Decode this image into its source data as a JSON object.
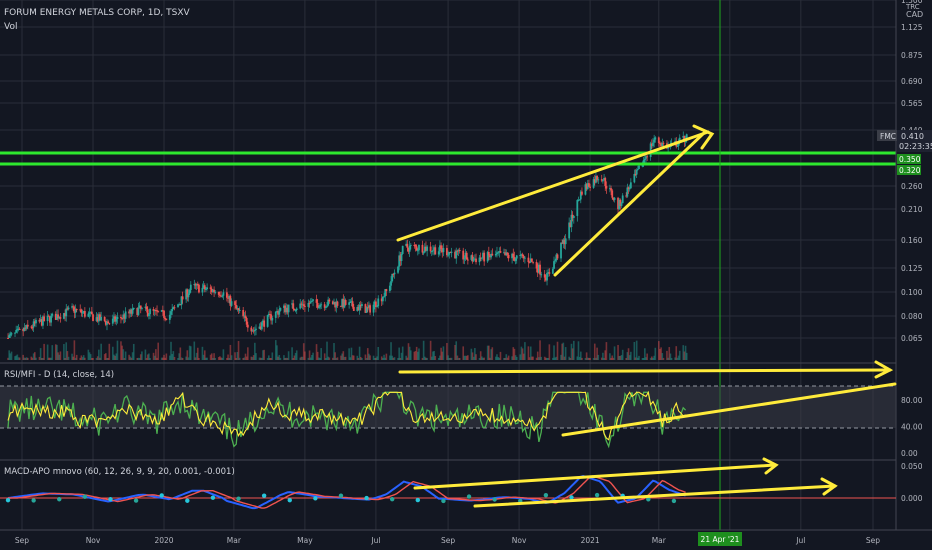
{
  "symbol": {
    "title": "FORUM ENERGY METALS CORP, 1D, TSXV",
    "volume_label": "Vol",
    "currency_top": "TRC",
    "currency": "CAD",
    "ticker_tag": "FMC",
    "last_price": "0.410",
    "countdown": "02:23:35",
    "level_upper_tag": "0.350",
    "level_lower_tag": "0.320"
  },
  "colors": {
    "background": "#131722",
    "up": "#26a69a",
    "down": "#ef5350",
    "support_lines": "#2ee82e",
    "annotations": "#ffeb3b",
    "cursor_line": "#1fa81f",
    "rsi_line": "#ffeb3b",
    "mfi_line": "#4caf50",
    "macd_line": "#2962ff",
    "signal_line": "#ef5350"
  },
  "rsi_panel": {
    "title": "RSI/MFI - D (14, close, 14)",
    "ticks": [
      "80.00",
      "40.00",
      "0.00"
    ]
  },
  "macd_panel": {
    "title": "MACD-APO mnovo (60, 12, 26, 9, 9, 20, 0.001, -0.001)",
    "ticks": [
      "0.050",
      "0.000"
    ]
  },
  "x_axis": {
    "labels": [
      "Sep",
      "Nov",
      "2020",
      "Mar",
      "May",
      "Jul",
      "Sep",
      "Nov",
      "2021",
      "Mar",
      "May",
      "Jul",
      "Sep"
    ],
    "cursor_date": "21 Apr '21"
  },
  "chart_data": {
    "type": "candlestick",
    "title": "FORUM ENERGY METALS CORP, 1D, TSXV",
    "y_scale": "log",
    "price_ticks": [
      "1.500",
      "1.125",
      "0.875",
      "0.690",
      "0.565",
      "0.440",
      "0.350",
      "0.320",
      "0.260",
      "0.210",
      "0.160",
      "0.125",
      "0.100",
      "0.080",
      "0.065"
    ],
    "price_path": [
      {
        "x": "2019-08-20",
        "y": 0.065
      },
      {
        "x": "2019-09-15",
        "y": 0.075
      },
      {
        "x": "2019-10-15",
        "y": 0.085
      },
      {
        "x": "2019-11-15",
        "y": 0.075
      },
      {
        "x": "2019-12-10",
        "y": 0.085
      },
      {
        "x": "2020-01-05",
        "y": 0.08
      },
      {
        "x": "2020-01-25",
        "y": 0.105
      },
      {
        "x": "2020-02-20",
        "y": 0.1
      },
      {
        "x": "2020-03-18",
        "y": 0.07
      },
      {
        "x": "2020-04-10",
        "y": 0.085
      },
      {
        "x": "2020-05-05",
        "y": 0.09
      },
      {
        "x": "2020-06-01",
        "y": 0.09
      },
      {
        "x": "2020-06-25",
        "y": 0.085
      },
      {
        "x": "2020-07-10",
        "y": 0.1
      },
      {
        "x": "2020-07-25",
        "y": 0.15
      },
      {
        "x": "2020-08-10",
        "y": 0.15
      },
      {
        "x": "2020-09-01",
        "y": 0.145
      },
      {
        "x": "2020-09-20",
        "y": 0.135
      },
      {
        "x": "2020-10-15",
        "y": 0.14
      },
      {
        "x": "2020-11-10",
        "y": 0.135
      },
      {
        "x": "2020-11-25",
        "y": 0.115
      },
      {
        "x": "2020-12-10",
        "y": 0.16
      },
      {
        "x": "2020-12-25",
        "y": 0.25
      },
      {
        "x": "2021-01-10",
        "y": 0.29
      },
      {
        "x": "2021-01-25",
        "y": 0.215
      },
      {
        "x": "2021-02-10",
        "y": 0.29
      },
      {
        "x": "2021-02-25",
        "y": 0.4
      },
      {
        "x": "2021-03-10",
        "y": 0.37
      },
      {
        "x": "2021-03-25",
        "y": 0.41
      }
    ],
    "horizontal_levels": [
      0.35,
      0.32
    ],
    "rsi_range": [
      0,
      100
    ],
    "rsi_band": [
      30,
      80
    ],
    "macd_ticks": [
      0.05,
      0.0
    ],
    "cursor_x": "2021-04-21",
    "grid": true
  }
}
